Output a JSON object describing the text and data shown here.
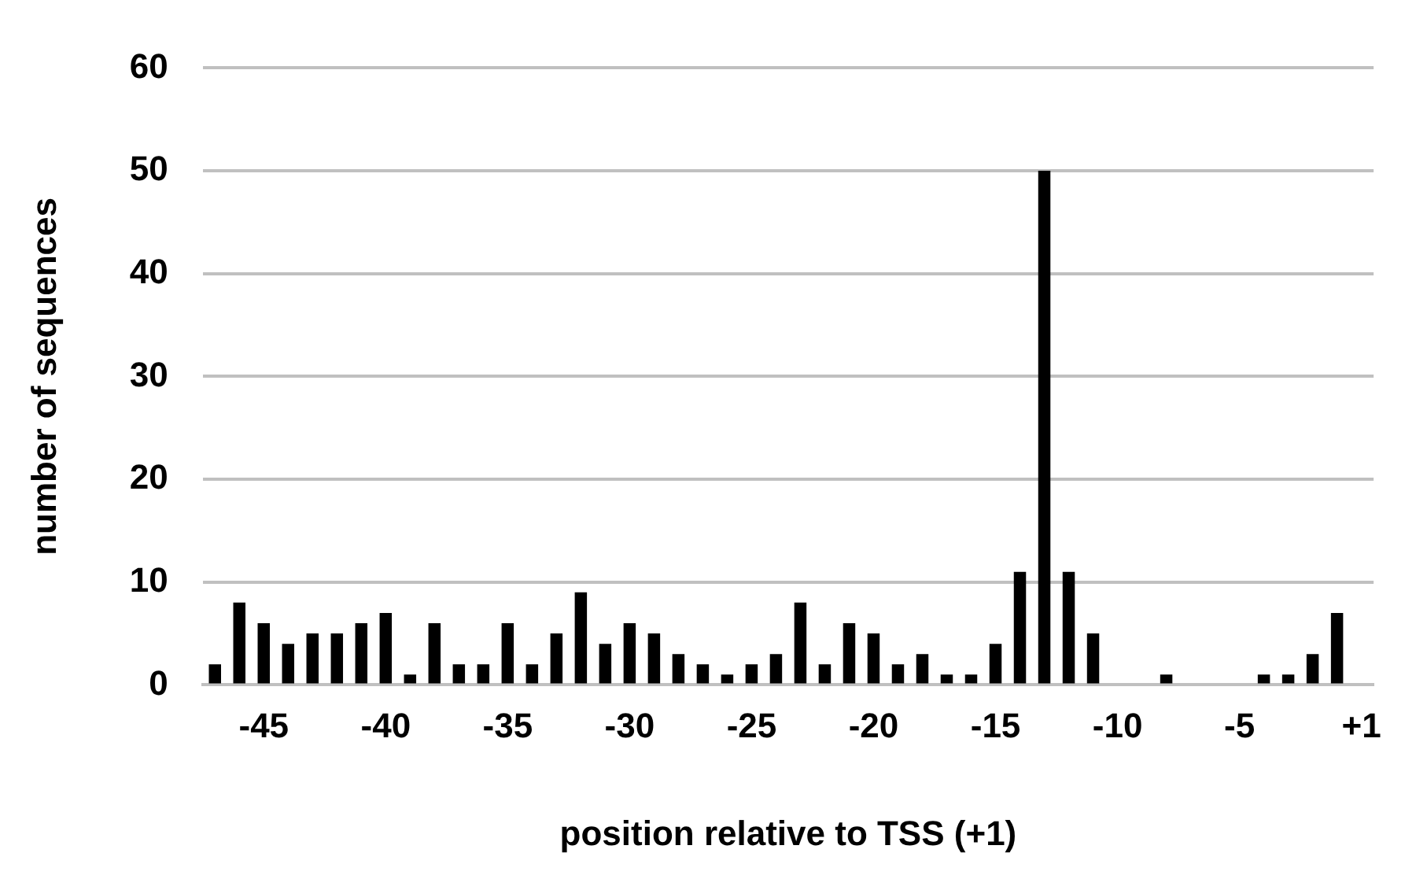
{
  "chart_data": {
    "type": "bar",
    "categories": [
      null,
      null,
      "-45",
      null,
      null,
      null,
      null,
      "-40",
      null,
      null,
      null,
      null,
      "-35",
      null,
      null,
      null,
      null,
      "-30",
      null,
      null,
      null,
      null,
      "-25",
      null,
      null,
      null,
      null,
      "-20",
      null,
      null,
      null,
      null,
      "-15",
      null,
      null,
      null,
      null,
      "-10",
      null,
      null,
      null,
      null,
      "-5",
      null,
      null,
      null,
      null,
      "+1"
    ],
    "values": [
      2,
      8,
      6,
      4,
      5,
      5,
      6,
      7,
      1,
      6,
      2,
      2,
      6,
      2,
      5,
      9,
      4,
      6,
      5,
      3,
      2,
      1,
      2,
      3,
      8,
      2,
      6,
      5,
      2,
      3,
      1,
      1,
      4,
      11,
      50,
      11,
      5,
      0,
      0,
      1,
      0,
      0,
      0,
      1,
      1,
      3,
      7,
      0
    ],
    "color": "#000000",
    "xlabel": "position relative to TSS (+1)",
    "ylabel": "number of sequences",
    "ylim": [
      0,
      60
    ],
    "yticks": [
      0,
      10,
      20,
      30,
      40,
      50,
      60
    ],
    "grid": "y"
  }
}
